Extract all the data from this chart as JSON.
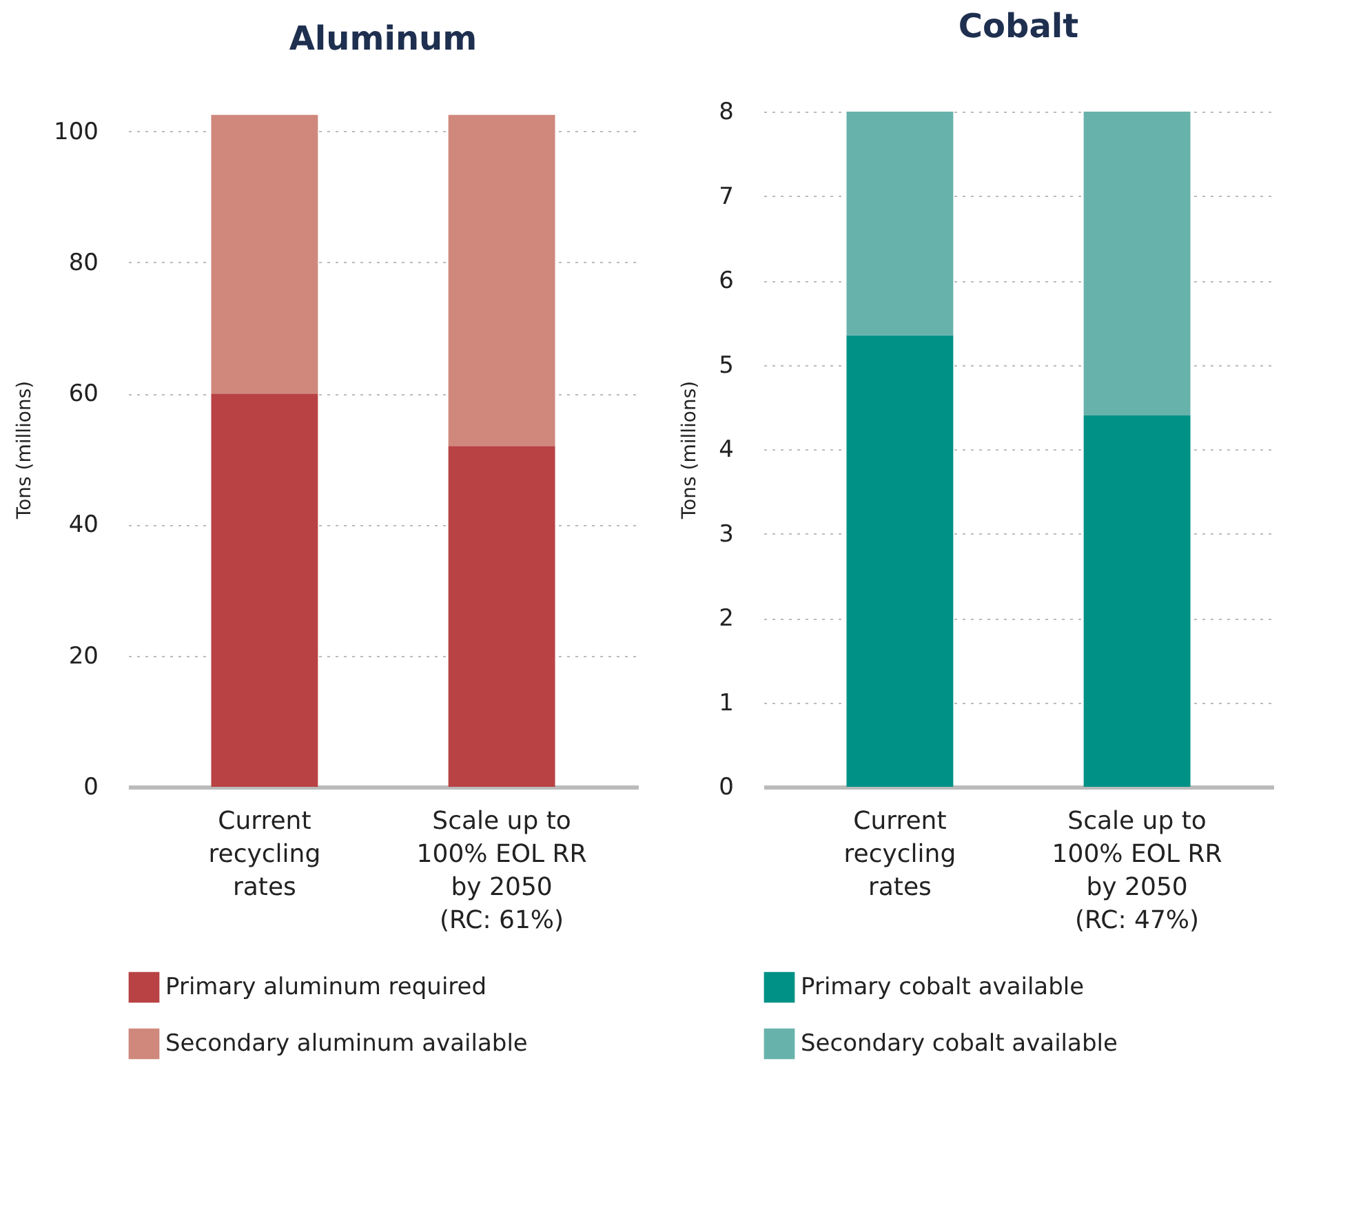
{
  "chart_data": [
    {
      "type": "bar",
      "title": "Aluminum",
      "ylabel": "Tons (millions)",
      "categories": [
        "Current\nrecycling\nrates",
        "Scale up to\n100% EOL RR\nby 2050\n(RC: 61%)"
      ],
      "stacked": true,
      "ylim": [
        0,
        103
      ],
      "yticks": [
        0,
        20,
        40,
        60,
        80,
        100
      ],
      "grid": "y",
      "legend": "bottom",
      "series": [
        {
          "name": "Primary aluminum required",
          "color": "#b84244",
          "values": [
            60,
            52
          ]
        },
        {
          "name": "Secondary aluminum available",
          "color": "#d0887c",
          "values": [
            42.5,
            50.5
          ]
        }
      ]
    },
    {
      "type": "bar",
      "title": "Cobalt",
      "ylabel": "Tons (millions)",
      "categories": [
        "Current\nrecycling\nrates",
        "Scale up to\n100% EOL RR\nby 2050\n(RC: 47%)"
      ],
      "stacked": true,
      "ylim": [
        0,
        8
      ],
      "yticks": [
        0,
        1,
        2,
        3,
        4,
        5,
        6,
        7,
        8
      ],
      "grid": "y",
      "legend": "bottom",
      "series": [
        {
          "name": "Primary cobalt available",
          "color": "#009186",
          "values": [
            5.35,
            4.4
          ]
        },
        {
          "name": "Secondary cobalt available",
          "color": "#68b2ac",
          "values": [
            2.65,
            3.6
          ]
        }
      ]
    }
  ]
}
